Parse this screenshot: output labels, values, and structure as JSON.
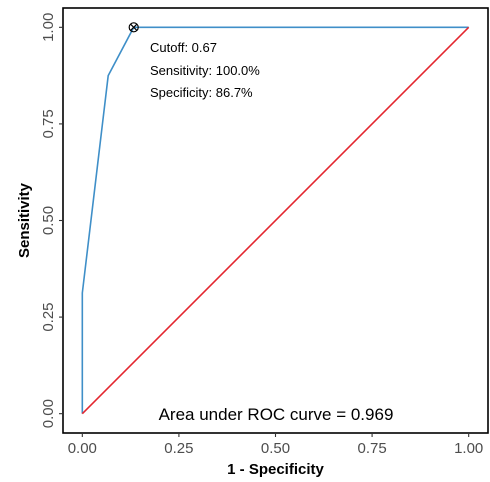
{
  "chart_data": {
    "type": "line",
    "xlabel": "1 - Specificity",
    "ylabel": "Sensitivity",
    "xlim": [
      0,
      1
    ],
    "ylim": [
      0,
      1
    ],
    "x_ticks": [
      0,
      0.25,
      0.5,
      0.75,
      1
    ],
    "x_tick_labels": [
      "0.00",
      "0.25",
      "0.50",
      "0.75",
      "1.00"
    ],
    "y_ticks": [
      0,
      0.25,
      0.5,
      0.75,
      1
    ],
    "y_tick_labels": [
      "0.00",
      "0.25",
      "0.50",
      "0.75",
      "1.00"
    ],
    "grid": false,
    "series": [
      {
        "x": [
          0,
          0,
          0.067,
          0.133,
          1
        ],
        "y": [
          0,
          0.3125,
          0.875,
          1,
          1
        ],
        "color": "#3f8fc8"
      },
      {
        "x": [
          0,
          1
        ],
        "y": [
          0,
          1
        ],
        "color": "#e3262f"
      }
    ],
    "cutoff_point": {
      "x": 0.133,
      "y": 1
    },
    "annotations": {
      "cutoff": "Cutoff: 0.67",
      "sensitivity": "Sensitivity: 100.0%",
      "specificity": "Specificity: 86.7%",
      "auc": "Area under ROC curve =  0.969"
    }
  }
}
